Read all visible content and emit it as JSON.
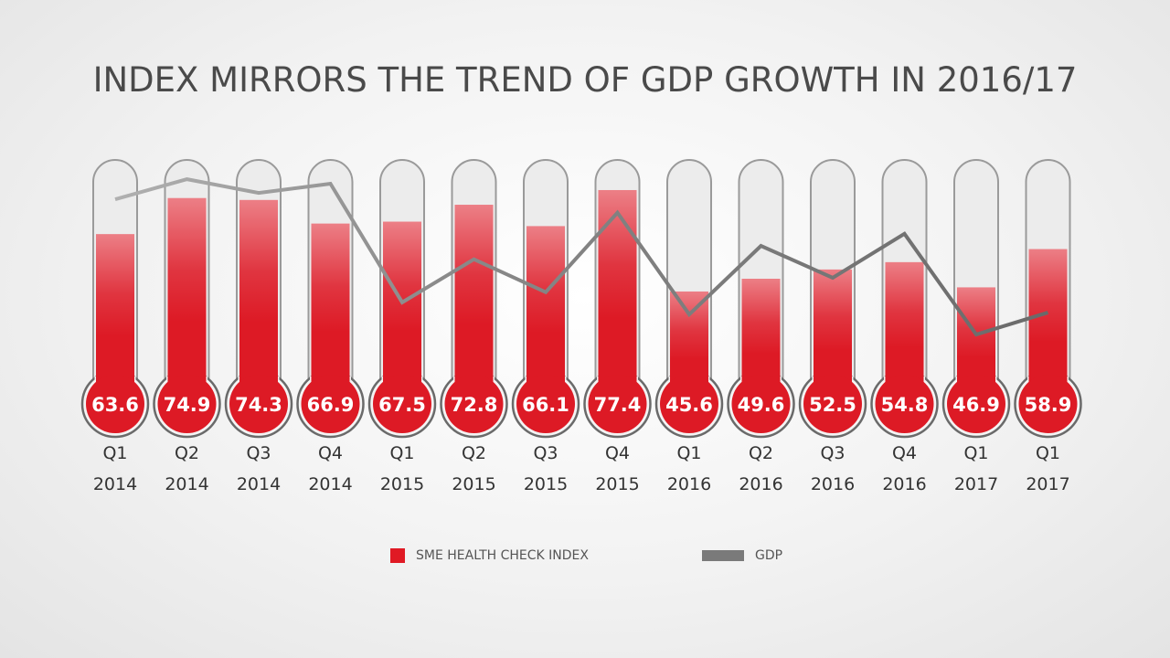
{
  "chart_data": {
    "type": "bar",
    "title": "INDEX MIRRORS THE TREND OF GDP GROWTH IN 2016/17",
    "categories": [
      [
        "Q1",
        "2014"
      ],
      [
        "Q2",
        "2014"
      ],
      [
        "Q3",
        "2014"
      ],
      [
        "Q4",
        "2014"
      ],
      [
        "Q1",
        "2015"
      ],
      [
        "Q2",
        "2015"
      ],
      [
        "Q3",
        "2015"
      ],
      [
        "Q4",
        "2015"
      ],
      [
        "Q1",
        "2016"
      ],
      [
        "Q2",
        "2016"
      ],
      [
        "Q3",
        "2016"
      ],
      [
        "Q4",
        "2016"
      ],
      [
        "Q1",
        "2017"
      ],
      [
        "Q1",
        "2017"
      ]
    ],
    "series": [
      {
        "name": "SME HEALTH CHECK INDEX",
        "type": "bar",
        "color": "#e01a24",
        "values": [
          63.6,
          74.9,
          74.3,
          66.9,
          67.5,
          72.8,
          66.1,
          77.4,
          45.6,
          49.6,
          52.5,
          54.8,
          46.9,
          58.9
        ]
      },
      {
        "name": "GDP",
        "type": "line",
        "color": "#7a7a7a",
        "values": [
          74.5,
          80.8,
          76.5,
          79.4,
          42.2,
          55.7,
          45.4,
          70.3,
          38.4,
          59.9,
          49.9,
          63.7,
          32.1,
          39.0
        ]
      }
    ],
    "bar_style": "thermometer",
    "data_labels": true,
    "grid": false,
    "legend_placement": "bottom"
  }
}
